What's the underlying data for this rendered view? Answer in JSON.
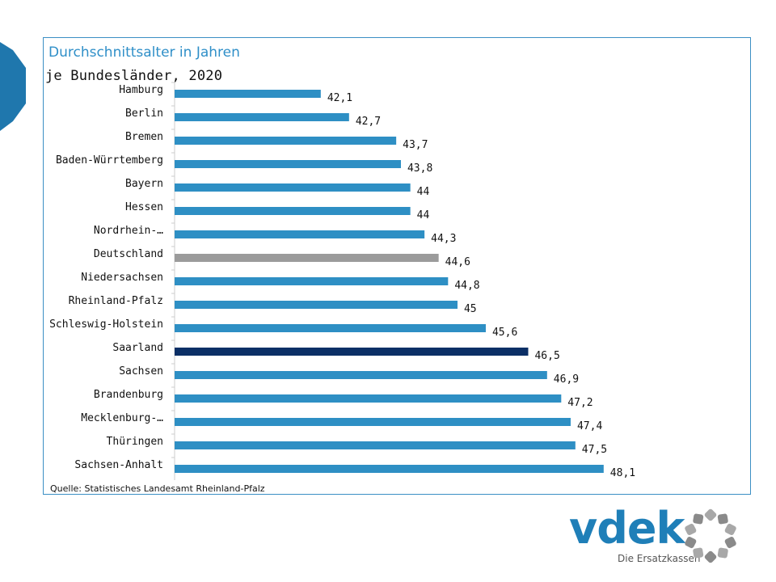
{
  "chart_data": {
    "type": "bar",
    "orientation": "horizontal",
    "title": "Durchschnittsalter in Jahren",
    "subtitle": "je Bundesländer, 2020",
    "source": "Quelle: Statistisches Landesamt Rheinland-Pfalz",
    "categories": [
      "Hamburg",
      "Berlin",
      "Bremen",
      "Baden-Würrtemberg",
      "Bayern",
      "Hessen",
      "Nordrhein-…",
      "Deutschland",
      "Niedersachsen",
      "Rheinland-Pfalz",
      "Schleswig-Holstein",
      "Saarland",
      "Sachsen",
      "Brandenburg",
      "Mecklenburg-…",
      "Thüringen",
      "Sachsen-Anhalt"
    ],
    "values": [
      42.1,
      42.7,
      43.7,
      43.8,
      44,
      44,
      44.3,
      44.6,
      44.8,
      45,
      45.6,
      46.5,
      46.9,
      47.2,
      47.4,
      47.5,
      48.1
    ],
    "value_labels": [
      "42,1",
      "42,7",
      "43,7",
      "43,8",
      "44",
      "44",
      "44,3",
      "44,6",
      "44,8",
      "45",
      "45,6",
      "46,5",
      "46,9",
      "47,2",
      "47,4",
      "47,5",
      "48,1"
    ],
    "colors": {
      "default": "#2e8fc4",
      "Deutschland": "#9b9b9b",
      "Saarland": "#0b2f66"
    },
    "xlim": [
      39,
      50
    ],
    "grid": false,
    "legend": "none"
  },
  "logo": {
    "word": "vdek",
    "tagline": "Die Ersatzkassen"
  }
}
